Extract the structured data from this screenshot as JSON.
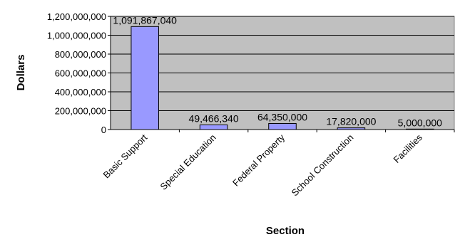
{
  "chart_data": {
    "type": "bar",
    "title": "",
    "xlabel": "Section",
    "ylabel": "Dollars",
    "categories": [
      "Basic Support",
      "Special Education",
      "Federal Property",
      "School Construction",
      "Facilities"
    ],
    "values": [
      1091867040,
      49466340,
      64350000,
      17820000,
      5000000
    ],
    "data_labels": [
      "1,091,867,040",
      "49,466,340",
      "64,350,000",
      "17,820,000",
      "5,000,000"
    ],
    "yticks": [
      "0",
      "200,000,000",
      "400,000,000",
      "600,000,000",
      "800,000,000",
      "1,000,000,000",
      "1,200,000,000"
    ],
    "ylim": [
      0,
      1200000000
    ],
    "grid": true,
    "legend": "none",
    "colors": {
      "plot_background": "#c0c0c0",
      "bar_fill": "#9999ff",
      "bar_stroke": "#000000",
      "gridline": "#000000"
    }
  }
}
